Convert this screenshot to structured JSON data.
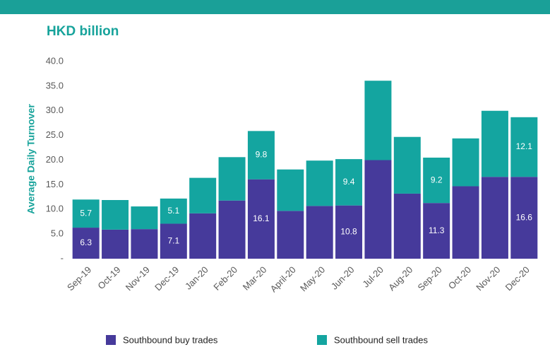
{
  "chart_data": {
    "type": "stacked_bar",
    "title": "HKD billion",
    "y_label": "Average Daily Turnover",
    "categories": [
      "Sep-19",
      "Oct-19",
      "Nov-19",
      "Dec-19",
      "Jan-20",
      "Feb-20",
      "Mar-20",
      "April-20",
      "May-20",
      "Jun-20",
      "Jul-20",
      "Aug-20",
      "Sep-20",
      "Oct-20",
      "Nov-20",
      "Dec-20"
    ],
    "series": [
      {
        "name": "Southbound buy trades",
        "color": "#463a9b",
        "values": [
          6.3,
          5.9,
          6.0,
          7.1,
          9.2,
          11.8,
          16.1,
          9.7,
          10.7,
          10.8,
          20.0,
          13.2,
          11.3,
          14.7,
          16.6,
          16.6
        ],
        "value_labels": [
          "6.3",
          null,
          null,
          "7.1",
          null,
          null,
          "16.1",
          null,
          null,
          "10.8",
          null,
          null,
          "11.3",
          null,
          null,
          "16.6"
        ]
      },
      {
        "name": "Southbound sell trades",
        "color": "#14a5a0",
        "values": [
          5.7,
          6.0,
          4.6,
          5.1,
          7.2,
          8.8,
          9.8,
          8.4,
          9.2,
          9.4,
          16.1,
          11.5,
          9.2,
          9.7,
          13.4,
          12.1
        ],
        "value_labels": [
          "5.7",
          null,
          null,
          "5.1",
          null,
          null,
          "9.8",
          null,
          null,
          "9.4",
          null,
          null,
          "9.2",
          null,
          null,
          "12.1"
        ]
      }
    ],
    "ylim": [
      0,
      40
    ],
    "yticks": [
      {
        "value": 0,
        "label": "-"
      },
      {
        "value": 5,
        "label": "5.0"
      },
      {
        "value": 10,
        "label": "10.0"
      },
      {
        "value": 15,
        "label": "15.0"
      },
      {
        "value": 20,
        "label": "20.0"
      },
      {
        "value": 25,
        "label": "25.0"
      },
      {
        "value": 30,
        "label": "30.0"
      },
      {
        "value": 35,
        "label": "35.0"
      },
      {
        "value": 40,
        "label": "40.0"
      }
    ],
    "grid": false,
    "legend": "bottom"
  }
}
